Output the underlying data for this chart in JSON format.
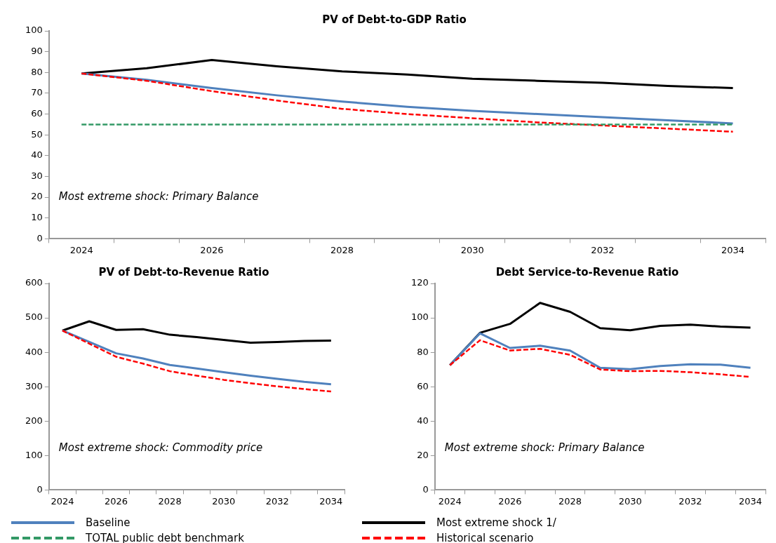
{
  "chart_data": [
    {
      "type": "line",
      "title": "PV of Debt-to-GDP Ratio",
      "categories": [
        "2024",
        null,
        "2026",
        null,
        "2028",
        null,
        "2030",
        null,
        "2032",
        null,
        "2034"
      ],
      "ylim": [
        0,
        100
      ],
      "yticks": [
        0,
        10,
        20,
        30,
        40,
        50,
        60,
        70,
        80,
        90,
        100
      ],
      "grid": false,
      "legend": "bottom",
      "marker": "none",
      "annotations": [
        "Most extreme shock: Primary Balance"
      ],
      "series": [
        {
          "name": "Baseline",
          "color": "#4f81bd",
          "line_style": "solid",
          "values": [
            79.5,
            76.5,
            72.5,
            69,
            66,
            63.5,
            61.5,
            60,
            58.5,
            57,
            55.5
          ]
        },
        {
          "name": "Most extreme shock 1/",
          "color": "#000000",
          "line_style": "solid",
          "values": [
            79.5,
            82,
            86,
            83,
            80.5,
            79,
            77,
            76,
            75,
            73.5,
            72.5
          ]
        },
        {
          "name": "TOTAL public debt benchmark",
          "color": "#339966",
          "line_style": "dashed",
          "values": [
            55,
            55,
            55,
            55,
            55,
            55,
            55,
            55,
            55,
            55,
            55
          ]
        },
        {
          "name": "Historical scenario",
          "color": "#ff0000",
          "line_style": "dashed",
          "values": [
            79.5,
            76,
            71,
            66.5,
            62.5,
            60,
            58,
            56,
            54.5,
            53,
            51.5
          ]
        }
      ]
    },
    {
      "type": "line",
      "title": "PV of Debt-to-Revenue Ratio",
      "categories": [
        "2024",
        null,
        "2026",
        null,
        "2028",
        null,
        "2030",
        null,
        "2032",
        null,
        "2034"
      ],
      "ylim": [
        0,
        600
      ],
      "yticks": [
        0,
        100,
        200,
        300,
        400,
        500,
        600
      ],
      "grid": false,
      "marker": "none",
      "annotations": [
        "Most extreme shock: Commodity price"
      ],
      "series": [
        {
          "color": "#4f81bd",
          "line_style": "solid",
          "values": [
            463,
            430,
            397,
            382,
            363,
            353,
            342,
            332,
            323,
            314,
            307
          ]
        },
        {
          "color": "#000000",
          "line_style": "solid",
          "values": [
            463,
            490,
            465,
            467,
            451,
            444,
            436,
            428,
            430,
            433,
            434
          ]
        },
        {
          "color": "#ff0000",
          "line_style": "dashed",
          "values": [
            463,
            425,
            387,
            367,
            345,
            332,
            320,
            310,
            301,
            293,
            286
          ]
        }
      ]
    },
    {
      "type": "line",
      "title": "Debt Service-to-Revenue Ratio",
      "categories": [
        "2024",
        null,
        "2026",
        null,
        "2028",
        null,
        "2030",
        null,
        "2032",
        null,
        "2034"
      ],
      "ylim": [
        0,
        120
      ],
      "yticks": [
        0,
        20,
        40,
        60,
        80,
        100,
        120
      ],
      "grid": false,
      "marker": "none",
      "annotations": [
        "Most extreme shock: Primary Balance"
      ],
      "series": [
        {
          "color": "#4f81bd",
          "line_style": "solid",
          "values": [
            72.5,
            91,
            82.5,
            83.8,
            81,
            71,
            70.2,
            72,
            73,
            72.8,
            71
          ]
        },
        {
          "color": "#000000",
          "line_style": "solid",
          "values": [
            72.5,
            91.3,
            96.5,
            108.7,
            103.5,
            94,
            92.8,
            95.3,
            96.1,
            94.9,
            94.3
          ]
        },
        {
          "color": "#ff0000",
          "line_style": "dashed",
          "values": [
            72.5,
            87,
            81,
            82,
            78.5,
            70,
            69,
            69.2,
            68.4,
            67.2,
            65.7
          ]
        }
      ]
    }
  ]
}
